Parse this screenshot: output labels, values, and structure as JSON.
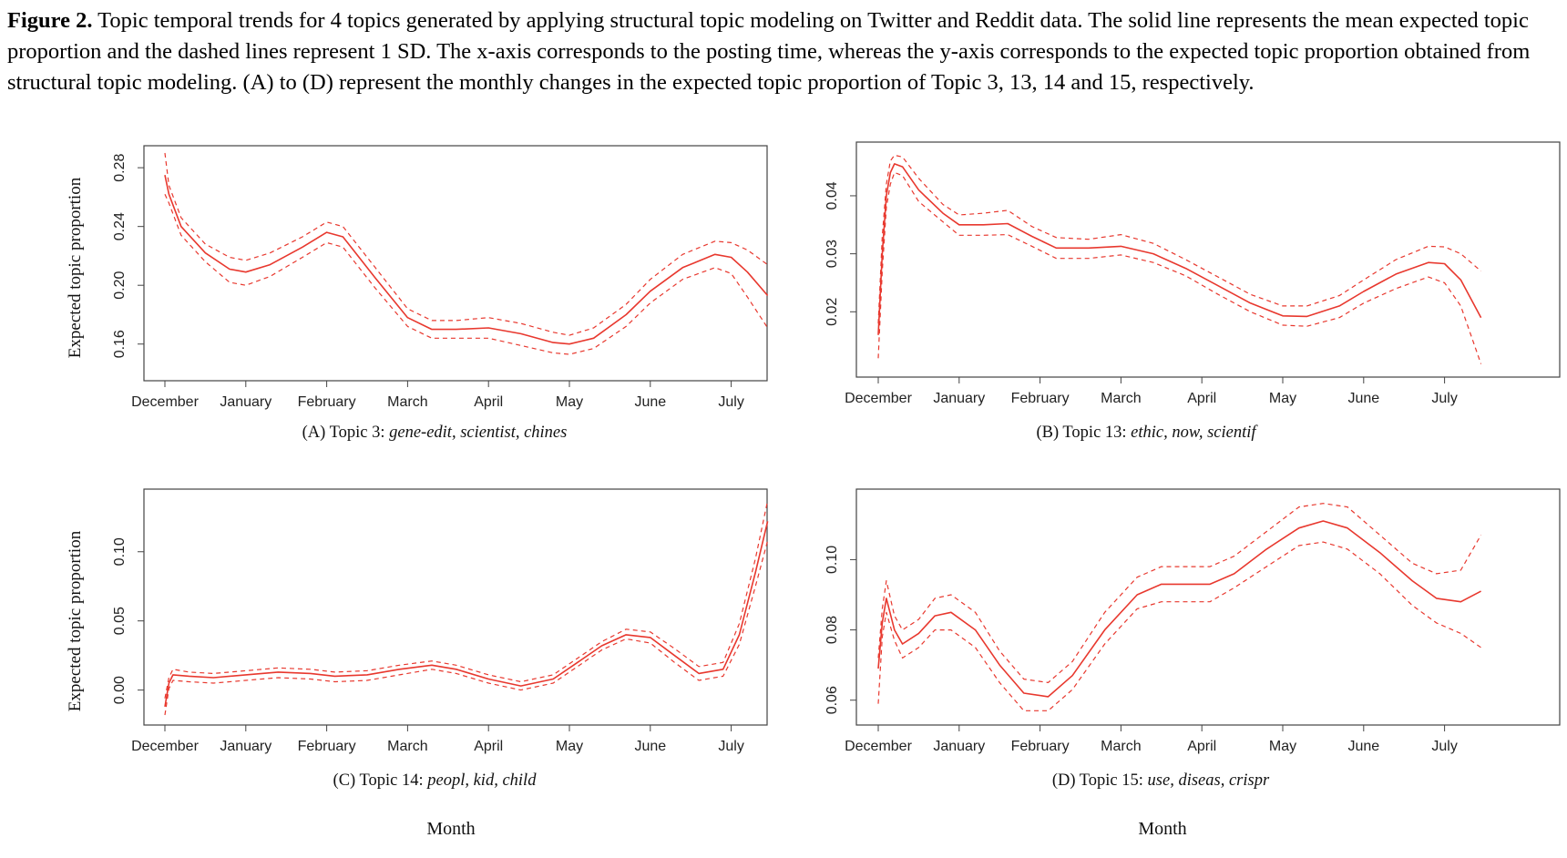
{
  "caption": {
    "label": "Figure 2.",
    "text": "Topic temporal trends for 4 topics generated by applying structural topic modeling on Twitter and Reddit data. The solid line represents the mean expected topic proportion and the dashed lines represent 1 SD. The x-axis corresponds to the posting time, whereas the y-axis corresponds to the expected topic proportion obtained from structural topic modeling. (A) to (D) represent the monthly changes in the expected topic proportion of Topic 3, 13, 14 and 15, respectively."
  },
  "ylabel": "Expected topic proportion",
  "xlabel": "Month",
  "line_color": "#e8382e",
  "chart_data": [
    {
      "type": "line",
      "panel": "A",
      "subtitle_prefix": "(A) Topic 3: ",
      "subtitle_terms": "gene-edit, scientist, chines",
      "show_ylabel": true,
      "categories": [
        "December",
        "January",
        "February",
        "March",
        "April",
        "May",
        "June",
        "July"
      ],
      "ylim": [
        0.14,
        0.29
      ],
      "yticks": [
        "0.16",
        "0.20",
        "0.24",
        "0.28"
      ],
      "yticks_values": [
        0.16,
        0.2,
        0.24,
        0.28
      ],
      "x": [
        0,
        0.05,
        0.2,
        0.5,
        0.8,
        1.0,
        1.3,
        1.7,
        2.0,
        2.2,
        2.6,
        3.0,
        3.3,
        3.6,
        4.0,
        4.4,
        4.8,
        5.0,
        5.3,
        5.7,
        6.0,
        6.4,
        6.8,
        7.0,
        7.2,
        7.45
      ],
      "series": [
        {
          "name": "mean",
          "style": "solid",
          "values": [
            0.275,
            0.262,
            0.24,
            0.222,
            0.211,
            0.209,
            0.214,
            0.226,
            0.236,
            0.233,
            0.205,
            0.178,
            0.17,
            0.17,
            0.171,
            0.167,
            0.161,
            0.16,
            0.164,
            0.18,
            0.196,
            0.212,
            0.221,
            0.219,
            0.209,
            0.193
          ]
        },
        {
          "name": "upper",
          "style": "dashed",
          "values": [
            0.29,
            0.268,
            0.246,
            0.228,
            0.219,
            0.217,
            0.222,
            0.233,
            0.243,
            0.24,
            0.212,
            0.184,
            0.176,
            0.176,
            0.178,
            0.174,
            0.168,
            0.166,
            0.171,
            0.187,
            0.204,
            0.221,
            0.23,
            0.229,
            0.224,
            0.214
          ]
        },
        {
          "name": "lower",
          "style": "dashed",
          "values": [
            0.262,
            0.256,
            0.234,
            0.216,
            0.202,
            0.2,
            0.206,
            0.219,
            0.229,
            0.226,
            0.198,
            0.172,
            0.164,
            0.164,
            0.164,
            0.159,
            0.154,
            0.153,
            0.157,
            0.172,
            0.188,
            0.204,
            0.212,
            0.208,
            0.192,
            0.171
          ]
        }
      ]
    },
    {
      "type": "line",
      "panel": "B",
      "subtitle_prefix": "(B) Topic 13:  ",
      "subtitle_terms": "ethic, now, scientif",
      "show_ylabel": false,
      "categories": [
        "December",
        "January",
        "February",
        "March",
        "April",
        "May",
        "June",
        "July"
      ],
      "ylim": [
        0.01,
        0.048
      ],
      "yticks": [
        "0.02",
        "0.03",
        "0.04"
      ],
      "yticks_values": [
        0.02,
        0.03,
        0.04
      ],
      "x": [
        0,
        0.05,
        0.1,
        0.15,
        0.2,
        0.3,
        0.5,
        0.8,
        1.0,
        1.3,
        1.6,
        1.9,
        2.2,
        2.6,
        3.0,
        3.4,
        3.8,
        4.2,
        4.6,
        5.0,
        5.3,
        5.7,
        6.0,
        6.4,
        6.8,
        7.0,
        7.2,
        7.45
      ],
      "series": [
        {
          "name": "mean",
          "style": "solid",
          "values": [
            0.016,
            0.03,
            0.04,
            0.044,
            0.0455,
            0.045,
            0.041,
            0.037,
            0.035,
            0.035,
            0.0352,
            0.033,
            0.031,
            0.031,
            0.0313,
            0.03,
            0.0275,
            0.0245,
            0.0215,
            0.0193,
            0.0192,
            0.021,
            0.0235,
            0.0265,
            0.0285,
            0.0283,
            0.0255,
            0.019
          ]
        },
        {
          "name": "upper",
          "style": "dashed",
          "values": [
            0.018,
            0.033,
            0.042,
            0.046,
            0.047,
            0.0467,
            0.043,
            0.0385,
            0.0367,
            0.037,
            0.0375,
            0.0347,
            0.0328,
            0.0325,
            0.0333,
            0.0318,
            0.029,
            0.026,
            0.023,
            0.021,
            0.021,
            0.0228,
            0.0255,
            0.029,
            0.0313,
            0.0312,
            0.03,
            0.027
          ]
        },
        {
          "name": "lower",
          "style": "dashed",
          "values": [
            0.012,
            0.027,
            0.038,
            0.042,
            0.044,
            0.0435,
            0.039,
            0.0355,
            0.0332,
            0.0332,
            0.0333,
            0.0313,
            0.0292,
            0.0292,
            0.0298,
            0.0285,
            0.0262,
            0.023,
            0.02,
            0.0177,
            0.0175,
            0.019,
            0.0215,
            0.024,
            0.026,
            0.025,
            0.021,
            0.011
          ]
        }
      ]
    },
    {
      "type": "line",
      "panel": "C",
      "subtitle_prefix": "(C) Topic 14: ",
      "subtitle_terms": "peopl, kid, child",
      "show_ylabel": true,
      "categories": [
        "December",
        "January",
        "February",
        "March",
        "April",
        "May",
        "June",
        "July"
      ],
      "ylim": [
        -0.02,
        0.14
      ],
      "yticks": [
        "0.00",
        "0.05",
        "0.10"
      ],
      "yticks_values": [
        0.0,
        0.05,
        0.1
      ],
      "x": [
        0,
        0.05,
        0.1,
        0.3,
        0.6,
        1.0,
        1.4,
        1.8,
        2.1,
        2.5,
        2.9,
        3.3,
        3.6,
        4.0,
        4.4,
        4.8,
        5.1,
        5.4,
        5.7,
        6.0,
        6.3,
        6.6,
        6.9,
        7.1,
        7.3,
        7.45
      ],
      "series": [
        {
          "name": "mean",
          "style": "solid",
          "values": [
            -0.012,
            0.005,
            0.011,
            0.01,
            0.009,
            0.011,
            0.013,
            0.012,
            0.01,
            0.011,
            0.015,
            0.018,
            0.015,
            0.008,
            0.003,
            0.008,
            0.02,
            0.032,
            0.04,
            0.038,
            0.025,
            0.012,
            0.015,
            0.04,
            0.085,
            0.122
          ]
        },
        {
          "name": "upper",
          "style": "dashed",
          "values": [
            -0.006,
            0.009,
            0.015,
            0.013,
            0.012,
            0.014,
            0.016,
            0.015,
            0.013,
            0.014,
            0.018,
            0.021,
            0.018,
            0.011,
            0.006,
            0.011,
            0.023,
            0.035,
            0.044,
            0.042,
            0.03,
            0.017,
            0.02,
            0.048,
            0.095,
            0.137
          ]
        },
        {
          "name": "lower",
          "style": "dashed",
          "values": [
            -0.018,
            0.001,
            0.007,
            0.006,
            0.005,
            0.007,
            0.009,
            0.008,
            0.006,
            0.007,
            0.011,
            0.015,
            0.012,
            0.005,
            0.0,
            0.005,
            0.017,
            0.029,
            0.037,
            0.034,
            0.02,
            0.007,
            0.01,
            0.033,
            0.075,
            0.108
          ]
        }
      ]
    },
    {
      "type": "line",
      "panel": "D",
      "subtitle_prefix": "(D) Topic 15: ",
      "subtitle_terms": "use, diseas, crispr",
      "show_ylabel": false,
      "categories": [
        "December",
        "January",
        "February",
        "March",
        "April",
        "May",
        "June",
        "July"
      ],
      "ylim": [
        0.055,
        0.118
      ],
      "yticks": [
        "0.06",
        "0.08",
        "0.10"
      ],
      "yticks_values": [
        0.06,
        0.08,
        0.1
      ],
      "x": [
        0,
        0.05,
        0.1,
        0.2,
        0.3,
        0.5,
        0.7,
        0.9,
        1.2,
        1.5,
        1.8,
        2.1,
        2.4,
        2.8,
        3.2,
        3.5,
        3.8,
        4.1,
        4.4,
        4.8,
        5.2,
        5.5,
        5.8,
        6.2,
        6.6,
        6.9,
        7.2,
        7.45
      ],
      "series": [
        {
          "name": "mean",
          "style": "solid",
          "values": [
            0.069,
            0.082,
            0.089,
            0.08,
            0.076,
            0.079,
            0.084,
            0.085,
            0.08,
            0.07,
            0.062,
            0.061,
            0.067,
            0.08,
            0.09,
            0.093,
            0.093,
            0.093,
            0.096,
            0.103,
            0.109,
            0.111,
            0.109,
            0.102,
            0.094,
            0.089,
            0.088,
            0.091
          ]
        },
        {
          "name": "upper",
          "style": "dashed",
          "values": [
            0.072,
            0.086,
            0.094,
            0.084,
            0.08,
            0.083,
            0.089,
            0.09,
            0.085,
            0.074,
            0.066,
            0.065,
            0.071,
            0.085,
            0.095,
            0.098,
            0.098,
            0.098,
            0.101,
            0.108,
            0.115,
            0.116,
            0.115,
            0.107,
            0.099,
            0.096,
            0.097,
            0.107
          ]
        },
        {
          "name": "lower",
          "style": "dashed",
          "values": [
            0.059,
            0.078,
            0.085,
            0.077,
            0.072,
            0.075,
            0.08,
            0.08,
            0.075,
            0.065,
            0.057,
            0.057,
            0.063,
            0.076,
            0.086,
            0.088,
            0.088,
            0.088,
            0.092,
            0.098,
            0.104,
            0.105,
            0.103,
            0.096,
            0.087,
            0.082,
            0.079,
            0.075
          ]
        }
      ]
    }
  ]
}
